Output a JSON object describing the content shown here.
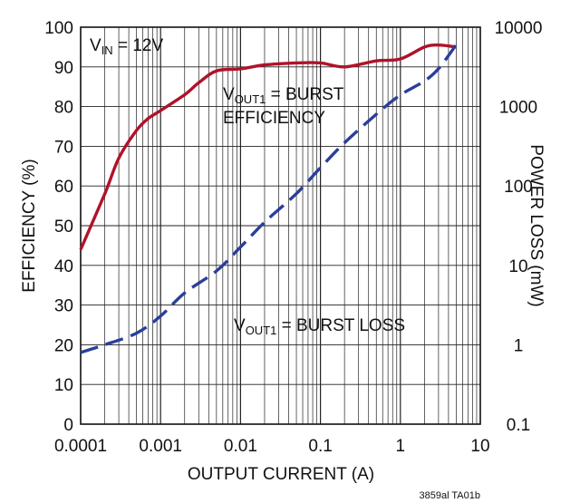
{
  "chart_data": {
    "type": "line",
    "xlabel": "OUTPUT CURRENT (A)",
    "ylabel_left": "EFFICIENCY (%)",
    "ylabel_right": "POWER LOSS (mW)",
    "xscale": "log",
    "x_ticks": [
      0.0001,
      0.001,
      0.01,
      0.1,
      1,
      10
    ],
    "x_tick_labels": [
      "0.0001",
      "0.001",
      "0.01",
      "0.1",
      "1",
      "10"
    ],
    "y_left_ticks": [
      0,
      10,
      20,
      30,
      40,
      50,
      60,
      70,
      80,
      90,
      100
    ],
    "y_left_tick_labels": [
      "0",
      "10",
      "20",
      "30",
      "40",
      "50",
      "60",
      "70",
      "80",
      "90",
      "100"
    ],
    "y_right_ticks": [
      0.1,
      1,
      10,
      100,
      1000,
      10000
    ],
    "y_right_tick_labels": [
      "0.1",
      "1",
      "10",
      "100",
      "1000",
      "10000"
    ],
    "xlim": [
      0.0001,
      10
    ],
    "ylim_left": [
      0,
      100
    ],
    "ylim_right": [
      0.1,
      10000
    ],
    "grid": true,
    "annotations": {
      "vin": {
        "main": "V",
        "sub": "IN",
        "rest": " = 12V"
      },
      "efficiency": {
        "main": "V",
        "sub": "OUT1",
        "rest": " = BURST",
        "line2": "EFFICIENCY"
      },
      "loss": {
        "main": "V",
        "sub": "OUT1",
        "rest": " = BURST LOSS"
      }
    },
    "figure_id": "3859al TA01b",
    "series": [
      {
        "axis": "left",
        "style": "solid",
        "color": "#b0122a",
        "x": [
          0.0001,
          0.0002,
          0.0003,
          0.0005,
          0.0007,
          0.001,
          0.002,
          0.003,
          0.005,
          0.01,
          0.02,
          0.05,
          0.1,
          0.2,
          0.5,
          1,
          2,
          3,
          5
        ],
        "y": [
          44,
          58,
          67,
          74,
          77,
          79,
          83,
          86,
          89,
          89.5,
          90.5,
          91,
          91,
          90,
          91.5,
          92,
          95,
          95.5,
          95
        ]
      },
      {
        "axis": "right",
        "style": "dashed",
        "color": "#2a3f9a",
        "x": [
          0.0001,
          0.0002,
          0.0005,
          0.001,
          0.002,
          0.005,
          0.01,
          0.02,
          0.05,
          0.1,
          0.2,
          0.5,
          1,
          2,
          3,
          5
        ],
        "y": [
          0.8,
          1.0,
          1.4,
          2.3,
          4.5,
          8.5,
          17,
          35,
          80,
          170,
          350,
          800,
          1400,
          2100,
          3000,
          6000
        ]
      }
    ]
  }
}
